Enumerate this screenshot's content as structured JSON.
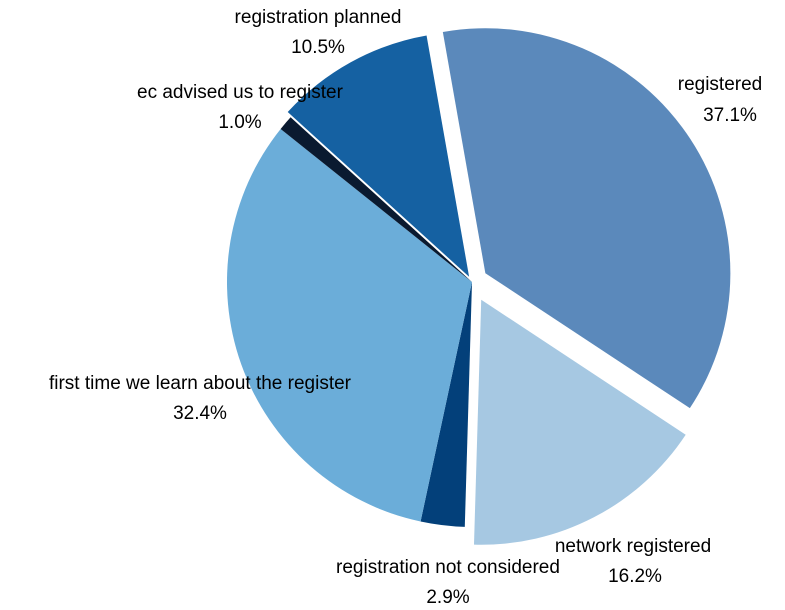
{
  "chart_data": {
    "type": "pie",
    "categories": [
      "registered",
      "network registered",
      "registration not considered",
      "first time we learn about the register",
      "ec advised us to register",
      "registration planned"
    ],
    "values": [
      37.1,
      16.2,
      2.9,
      32.4,
      1.0,
      10.5
    ],
    "value_labels": [
      "37.1%",
      "16.2%",
      "2.9%",
      "32.4%",
      "1.0%",
      "10.5%"
    ],
    "colors": [
      "#5b89bb",
      "#a6c8e2",
      "#03407a",
      "#6badd9",
      "#0a1a30",
      "#1561a2"
    ]
  }
}
